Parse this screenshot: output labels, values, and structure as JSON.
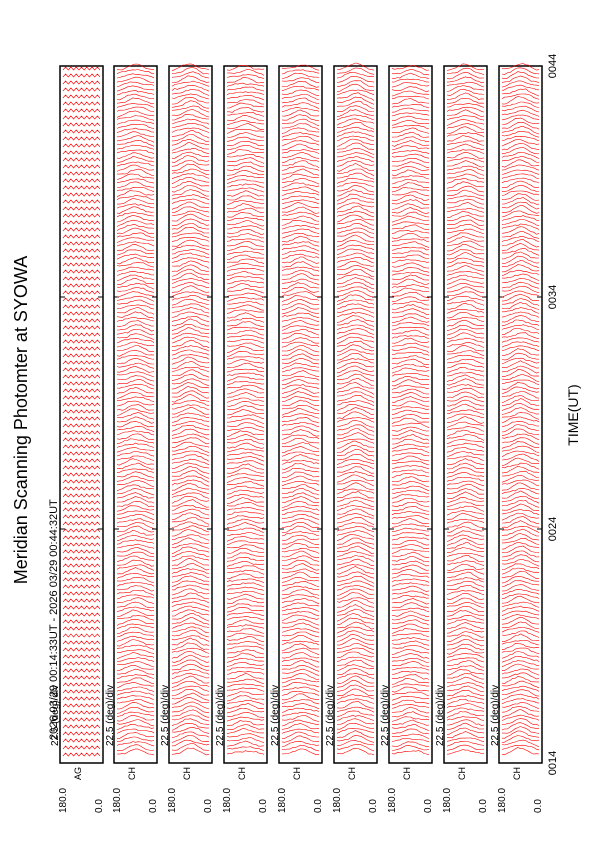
{
  "page": {
    "title": "Meridian Scanning Photomter at SYOWA",
    "time_range": "2026 03/29 00:14:33UT - 2026 03/29 00:44:32UT",
    "time_axis_label": "TIME(UT)"
  },
  "chart_data": {
    "type": "line",
    "orientation": "rotated 90deg (time runs top to bottom of the page)",
    "title": "Meridian Scanning Photomter at SYOWA",
    "subtitle": "2026 03/29 00:14:33UT - 2026 03/29 00:44:32UT",
    "xlabel": "TIME(UT)",
    "x_ticks": [
      "0014",
      "0024",
      "0034",
      "0044"
    ],
    "x_range": [
      "0014",
      "0044"
    ],
    "scan_range_labels": [
      "180.0",
      "0.0"
    ],
    "panel_scale_label": "22.5 (deg)/div",
    "series_color": "#ff0000",
    "panels": [
      {
        "channel_label": "AG"
      },
      {
        "channel_label": "CH"
      },
      {
        "channel_label": "CH"
      },
      {
        "channel_label": "CH"
      },
      {
        "channel_label": "CH"
      },
      {
        "channel_label": "CH"
      },
      {
        "channel_label": "CH"
      },
      {
        "channel_label": "CH"
      },
      {
        "channel_label": "CH"
      }
    ]
  }
}
